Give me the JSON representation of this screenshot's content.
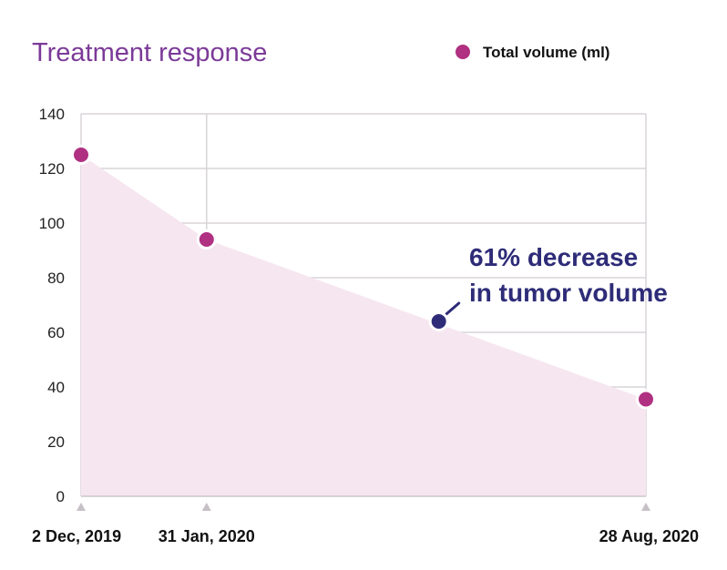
{
  "chart_data": {
    "type": "area",
    "title": "Treatment response",
    "legend": {
      "position": "top-right",
      "entries": [
        {
          "name": "Total volume (ml)",
          "color": "#b03081"
        }
      ]
    },
    "xlabel": "",
    "ylabel": "",
    "ylim": [
      0,
      140
    ],
    "yticks": [
      0,
      20,
      40,
      60,
      80,
      100,
      120,
      140
    ],
    "grid": true,
    "series": [
      {
        "name": "Total volume (ml)",
        "color": "#b03081",
        "fill_color": "#f6e6f0",
        "points": [
          {
            "x": 0,
            "y": 125
          },
          {
            "x": 60,
            "y": 94
          },
          {
            "x": 270,
            "y": 35.5
          }
        ]
      }
    ],
    "x_ticks": [
      {
        "x": 0,
        "label": "2 Dec, 2019"
      },
      {
        "x": 60,
        "label": "31 Jan, 2020"
      },
      {
        "x": 270,
        "label": "28 Aug, 2020"
      }
    ],
    "annotation": {
      "lines": [
        "61% decrease",
        "in tumor volume"
      ],
      "point": {
        "x": 171,
        "y": 64
      },
      "color": "#2e2c78"
    }
  }
}
